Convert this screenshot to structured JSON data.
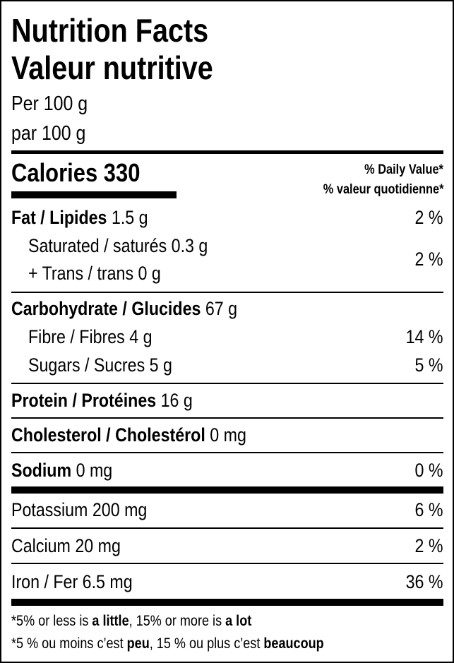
{
  "header": {
    "title_en": "Nutrition Facts",
    "title_fr": "Valeur nutritive",
    "serving_en": "Per 100 g",
    "serving_fr": "par 100 g"
  },
  "calories": {
    "label": "Calories",
    "value": "330"
  },
  "daily_value": {
    "en": "% Daily Value*",
    "fr": "% valeur quotidienne*"
  },
  "rows": {
    "fat": {
      "label": "Fat / Lipides",
      "amount": "1.5 g",
      "dv": "2 %"
    },
    "saturated": {
      "label": "Saturated / saturés",
      "amount": "0.3 g"
    },
    "trans": {
      "label": "+ Trans / trans",
      "amount": "0 g"
    },
    "sat_trans_dv": "2 %",
    "carbohydrate": {
      "label": "Carbohydrate / Glucides",
      "amount": "67 g"
    },
    "fibre": {
      "label": "Fibre / Fibres",
      "amount": "4 g",
      "dv": "14 %"
    },
    "sugars": {
      "label": "Sugars / Sucres",
      "amount": "5 g",
      "dv": "5 %"
    },
    "protein": {
      "label": "Protein / Protéines",
      "amount": "16 g"
    },
    "cholesterol": {
      "label": "Cholesterol / Cholestérol",
      "amount": "0 mg"
    },
    "sodium": {
      "label": "Sodium",
      "amount": "0 mg",
      "dv": "0 %"
    },
    "potassium": {
      "label": "Potassium",
      "amount": "200 mg",
      "dv": "6 %"
    },
    "calcium": {
      "label": "Calcium",
      "amount": "20 mg",
      "dv": "2 %"
    },
    "iron": {
      "label": "Iron / Fer",
      "amount": "6.5 mg",
      "dv": "36 %"
    }
  },
  "footnote": {
    "en": {
      "p1": "*5% or less is ",
      "b1": "a little",
      ",p2": "",
      "p2": ", 15% or more is ",
      "b2": "a lot"
    },
    "fr": {
      "p1": "*5 % ou moins c’est ",
      "b1": "peu",
      "p2": ", 15 % ou plus c’est ",
      "b2": "beaucoup"
    }
  }
}
